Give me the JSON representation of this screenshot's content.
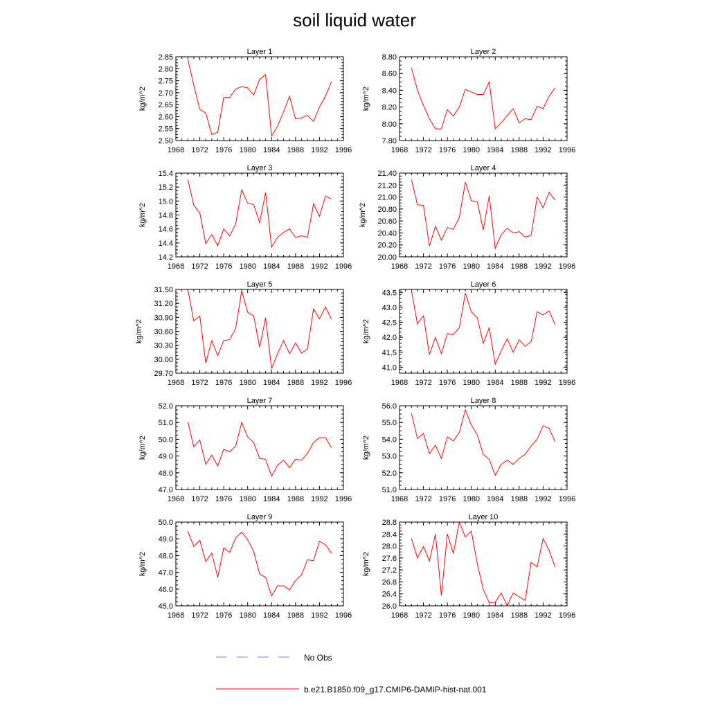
{
  "page": {
    "title": "soil liquid water"
  },
  "legend": [
    {
      "label": "No Obs",
      "color": "#7f7fff",
      "style": "dashed"
    },
    {
      "label": "b.e21.B1850.f09_g17.CMIP6-DAMIP-hist-nat.001",
      "color": "#ff0000",
      "style": "solid"
    }
  ],
  "chart_data": [
    {
      "type": "line",
      "title": "Layer 1",
      "ylabel": "kg/m^2",
      "xlim": [
        1968,
        1996
      ],
      "xticks": [
        1968,
        1972,
        1976,
        1980,
        1984,
        1988,
        1992,
        1996
      ],
      "ylim": [
        2.5,
        2.85
      ],
      "yticks": [
        "2.50",
        "2.55",
        "2.60",
        "2.65",
        "2.70",
        "2.75",
        "2.80",
        "2.85"
      ],
      "series": [
        {
          "color": "#ff0000",
          "x": [
            1970,
            1971,
            1972,
            1973,
            1974,
            1975,
            1976,
            1977,
            1978,
            1979,
            1980,
            1981,
            1982,
            1983,
            1984,
            1985,
            1986,
            1987,
            1988,
            1989,
            1990,
            1991,
            1992,
            1993,
            1994
          ],
          "values": [
            2.84,
            2.73,
            2.63,
            2.615,
            2.525,
            2.535,
            2.68,
            2.68,
            2.715,
            2.725,
            2.72,
            2.69,
            2.755,
            2.775,
            2.52,
            2.56,
            2.62,
            2.685,
            2.59,
            2.595,
            2.605,
            2.58,
            2.64,
            2.685,
            2.745
          ]
        }
      ]
    },
    {
      "type": "line",
      "title": "Layer 2",
      "ylabel": "kg/m^2",
      "xlim": [
        1968,
        1996
      ],
      "xticks": [
        1968,
        1972,
        1976,
        1980,
        1984,
        1988,
        1992,
        1996
      ],
      "ylim": [
        7.8,
        8.8
      ],
      "yticks": [
        "7.80",
        "8.00",
        "8.20",
        "8.40",
        "8.60",
        "8.80"
      ],
      "series": [
        {
          "color": "#ff0000",
          "x": [
            1970,
            1971,
            1972,
            1973,
            1974,
            1975,
            1976,
            1977,
            1978,
            1979,
            1980,
            1981,
            1982,
            1983,
            1984,
            1985,
            1986,
            1987,
            1988,
            1989,
            1990,
            1991,
            1992,
            1993,
            1994
          ],
          "values": [
            8.67,
            8.4,
            8.22,
            8.06,
            7.94,
            7.94,
            8.17,
            8.09,
            8.2,
            8.41,
            8.38,
            8.35,
            8.35,
            8.5,
            7.94,
            8.01,
            8.1,
            8.18,
            8.01,
            8.06,
            8.05,
            8.21,
            8.18,
            8.33,
            8.43
          ]
        }
      ]
    },
    {
      "type": "line",
      "title": "Layer 3",
      "ylabel": "kg/m^2",
      "xlim": [
        1968,
        1996
      ],
      "xticks": [
        1968,
        1972,
        1976,
        1980,
        1984,
        1988,
        1992,
        1996
      ],
      "ylim": [
        14.2,
        15.4
      ],
      "yticks": [
        "14.2",
        "14.4",
        "14.6",
        "14.8",
        "15.0",
        "15.2",
        "15.4"
      ],
      "series": [
        {
          "color": "#ff0000",
          "x": [
            1970,
            1971,
            1972,
            1973,
            1974,
            1975,
            1976,
            1977,
            1978,
            1979,
            1980,
            1981,
            1982,
            1983,
            1984,
            1985,
            1986,
            1987,
            1988,
            1989,
            1990,
            1991,
            1992,
            1993,
            1994
          ],
          "values": [
            15.31,
            14.94,
            14.83,
            14.39,
            14.52,
            14.36,
            14.6,
            14.5,
            14.67,
            15.16,
            14.97,
            14.95,
            14.69,
            15.12,
            14.34,
            14.48,
            14.55,
            14.6,
            14.48,
            14.5,
            14.48,
            14.96,
            14.78,
            15.07,
            15.03
          ]
        }
      ]
    },
    {
      "type": "line",
      "title": "Layer 4",
      "ylabel": "kg/m^2",
      "xlim": [
        1968,
        1996
      ],
      "xticks": [
        1968,
        1972,
        1976,
        1980,
        1984,
        1988,
        1992,
        1996
      ],
      "ylim": [
        20.0,
        21.4
      ],
      "yticks": [
        "20.00",
        "20.20",
        "20.40",
        "20.60",
        "20.80",
        "21.00",
        "21.20",
        "21.40"
      ],
      "series": [
        {
          "color": "#ff0000",
          "x": [
            1970,
            1971,
            1972,
            1973,
            1974,
            1975,
            1976,
            1977,
            1978,
            1979,
            1980,
            1981,
            1982,
            1983,
            1984,
            1985,
            1986,
            1987,
            1988,
            1989,
            1990,
            1991,
            1992,
            1993,
            1994
          ],
          "values": [
            21.29,
            20.87,
            20.86,
            20.18,
            20.51,
            20.28,
            20.49,
            20.46,
            20.66,
            21.25,
            20.94,
            20.92,
            20.45,
            21.02,
            20.14,
            20.37,
            20.48,
            20.4,
            20.42,
            20.33,
            20.36,
            21.0,
            20.82,
            21.08,
            20.95
          ]
        }
      ]
    },
    {
      "type": "line",
      "title": "Layer 5",
      "ylabel": "kg/m^2",
      "xlim": [
        1968,
        1996
      ],
      "xticks": [
        1968,
        1972,
        1976,
        1980,
        1984,
        1988,
        1992,
        1996
      ],
      "ylim": [
        29.7,
        31.5
      ],
      "yticks": [
        "29.70",
        "30.00",
        "30.30",
        "30.60",
        "30.90",
        "31.20",
        "31.50"
      ],
      "series": [
        {
          "color": "#ff0000",
          "x": [
            1970,
            1971,
            1972,
            1973,
            1974,
            1975,
            1976,
            1977,
            1978,
            1979,
            1980,
            1981,
            1982,
            1983,
            1984,
            1985,
            1986,
            1987,
            1988,
            1989,
            1990,
            1991,
            1992,
            1993,
            1994
          ],
          "values": [
            31.5,
            30.82,
            30.93,
            29.92,
            30.4,
            30.08,
            30.4,
            30.42,
            30.66,
            31.47,
            31.01,
            30.93,
            30.26,
            30.89,
            29.8,
            30.12,
            30.4,
            30.12,
            30.35,
            30.13,
            30.22,
            31.08,
            30.87,
            31.12,
            30.86
          ]
        }
      ]
    },
    {
      "type": "line",
      "title": "Layer 6",
      "ylabel": "kg/m^2",
      "xlim": [
        1968,
        1996
      ],
      "xticks": [
        1968,
        1972,
        1976,
        1980,
        1984,
        1988,
        1992,
        1996
      ],
      "ylim": [
        40.8,
        43.6
      ],
      "yticks": [
        "41.0",
        "41.5",
        "42.0",
        "42.5",
        "43.0",
        "43.5"
      ],
      "series": [
        {
          "color": "#ff0000",
          "x": [
            1970,
            1971,
            1972,
            1973,
            1974,
            1975,
            1976,
            1977,
            1978,
            1979,
            1980,
            1981,
            1982,
            1983,
            1984,
            1985,
            1986,
            1987,
            1988,
            1989,
            1990,
            1991,
            1992,
            1993,
            1994
          ],
          "values": [
            43.55,
            42.45,
            42.72,
            41.42,
            42.0,
            41.45,
            42.12,
            42.1,
            42.32,
            43.48,
            42.85,
            42.65,
            41.8,
            42.32,
            41.1,
            41.55,
            41.95,
            41.5,
            41.92,
            41.7,
            41.85,
            42.85,
            42.75,
            42.88,
            42.42
          ]
        }
      ]
    },
    {
      "type": "line",
      "title": "Layer 7",
      "ylabel": "kg/m^2",
      "xlim": [
        1968,
        1996
      ],
      "xticks": [
        1968,
        1972,
        1976,
        1980,
        1984,
        1988,
        1992,
        1996
      ],
      "ylim": [
        47.0,
        52.0
      ],
      "yticks": [
        "47.0",
        "48.0",
        "49.0",
        "50.0",
        "51.0",
        "52.0"
      ],
      "series": [
        {
          "color": "#ff0000",
          "x": [
            1970,
            1971,
            1972,
            1973,
            1974,
            1975,
            1976,
            1977,
            1978,
            1979,
            1980,
            1981,
            1982,
            1983,
            1984,
            1985,
            1986,
            1987,
            1988,
            1989,
            1990,
            1991,
            1992,
            1993,
            1994
          ],
          "values": [
            51.05,
            49.55,
            49.95,
            48.5,
            49.05,
            48.4,
            49.4,
            49.25,
            49.6,
            51.0,
            50.15,
            49.8,
            48.85,
            48.8,
            47.8,
            48.45,
            48.75,
            48.3,
            48.8,
            48.75,
            49.15,
            49.8,
            50.1,
            50.1,
            49.5
          ]
        }
      ]
    },
    {
      "type": "line",
      "title": "Layer 8",
      "ylabel": "kg/m^2",
      "xlim": [
        1968,
        1996
      ],
      "xticks": [
        1968,
        1972,
        1976,
        1980,
        1984,
        1988,
        1992,
        1996
      ],
      "ylim": [
        51.0,
        56.0
      ],
      "yticks": [
        "51.0",
        "52.0",
        "53.0",
        "54.0",
        "55.0",
        "56.0"
      ],
      "series": [
        {
          "color": "#ff0000",
          "x": [
            1970,
            1971,
            1972,
            1973,
            1974,
            1975,
            1976,
            1977,
            1978,
            1979,
            1980,
            1981,
            1982,
            1983,
            1984,
            1985,
            1986,
            1987,
            1988,
            1989,
            1990,
            1991,
            1992,
            1993,
            1994
          ],
          "values": [
            55.55,
            54.05,
            54.35,
            53.15,
            53.65,
            52.85,
            54.15,
            53.9,
            54.4,
            55.75,
            54.85,
            54.25,
            53.1,
            52.8,
            51.85,
            52.5,
            52.75,
            52.5,
            52.85,
            53.1,
            53.6,
            54.0,
            54.8,
            54.65,
            53.85
          ]
        }
      ]
    },
    {
      "type": "line",
      "title": "Layer 9",
      "ylabel": "kg/m^2",
      "xlim": [
        1968,
        1996
      ],
      "xticks": [
        1968,
        1972,
        1976,
        1980,
        1984,
        1988,
        1992,
        1996
      ],
      "ylim": [
        45.0,
        50.0
      ],
      "yticks": [
        "45.0",
        "46.0",
        "47.0",
        "48.0",
        "49.0",
        "50.0"
      ],
      "series": [
        {
          "color": "#ff0000",
          "x": [
            1970,
            1971,
            1972,
            1973,
            1974,
            1975,
            1976,
            1977,
            1978,
            1979,
            1980,
            1981,
            1982,
            1983,
            1984,
            1985,
            1986,
            1987,
            1988,
            1989,
            1990,
            1991,
            1992,
            1993,
            1994
          ],
          "values": [
            49.45,
            48.55,
            48.9,
            47.65,
            48.15,
            46.7,
            48.45,
            48.2,
            49.05,
            49.4,
            48.95,
            48.25,
            46.9,
            46.7,
            45.6,
            46.2,
            46.2,
            45.95,
            46.5,
            46.85,
            47.75,
            47.7,
            48.85,
            48.65,
            48.15
          ]
        }
      ]
    },
    {
      "type": "line",
      "title": "Layer 10",
      "ylabel": "kg/m^2",
      "xlim": [
        1968,
        1996
      ],
      "xticks": [
        1968,
        1972,
        1976,
        1980,
        1984,
        1988,
        1992,
        1996
      ],
      "ylim": [
        26.0,
        28.8
      ],
      "yticks": [
        "26.0",
        "26.4",
        "26.8",
        "27.2",
        "27.6",
        "28.0",
        "28.4",
        "28.8"
      ],
      "series": [
        {
          "color": "#ff0000",
          "x": [
            1970,
            1971,
            1972,
            1973,
            1974,
            1975,
            1976,
            1977,
            1978,
            1979,
            1980,
            1981,
            1982,
            1983,
            1984,
            1985,
            1986,
            1987,
            1988,
            1989,
            1990,
            1991,
            1992,
            1993,
            1994
          ],
          "values": [
            28.25,
            27.6,
            27.98,
            27.5,
            28.4,
            26.35,
            28.4,
            27.75,
            28.8,
            28.3,
            28.5,
            27.4,
            26.55,
            26.1,
            26.12,
            26.43,
            26.0,
            26.43,
            26.3,
            26.18,
            27.45,
            27.3,
            28.25,
            27.85,
            27.3
          ]
        }
      ]
    }
  ]
}
